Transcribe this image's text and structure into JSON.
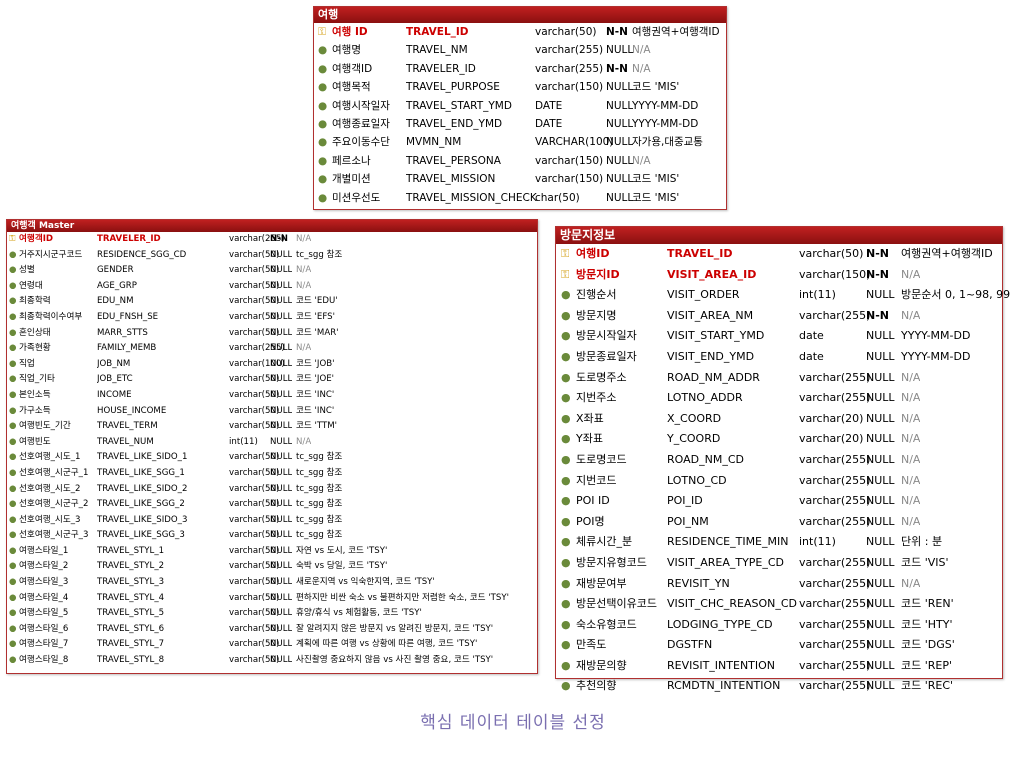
{
  "caption": "핵심 데이터 테이블 선정",
  "tables": [
    {
      "id": "travel",
      "title": "여행",
      "columns": [
        {
          "kor": "여행 ID",
          "name": "TRAVEL_ID",
          "type": "varchar(50)",
          "null": "N-N",
          "comment": "여행권역+여행객ID",
          "pk": true,
          "key": true,
          "na": false
        },
        {
          "kor": "여행명",
          "name": "TRAVEL_NM",
          "type": "varchar(255)",
          "null": "NULL",
          "comment": "N/A",
          "pk": false,
          "key": false,
          "na": true
        },
        {
          "kor": "여행객ID",
          "name": "TRAVELER_ID",
          "type": "varchar(255)",
          "null": "N-N",
          "comment": "N/A",
          "pk": false,
          "key": false,
          "na": true
        },
        {
          "kor": "여행목적",
          "name": "TRAVEL_PURPOSE",
          "type": "varchar(150)",
          "null": "NULL",
          "comment": "코드 'MIS'",
          "pk": false,
          "key": false,
          "na": false
        },
        {
          "kor": "여행시작일자",
          "name": "TRAVEL_START_YMD",
          "type": "DATE",
          "null": "NULL",
          "comment": "YYYY-MM-DD",
          "pk": false,
          "key": false,
          "na": false
        },
        {
          "kor": "여행종료일자",
          "name": "TRAVEL_END_YMD",
          "type": "DATE",
          "null": "NULL",
          "comment": "YYYY-MM-DD",
          "pk": false,
          "key": false,
          "na": false
        },
        {
          "kor": "주요이동수단",
          "name": "MVMN_NM",
          "type": "VARCHAR(100)",
          "null": "NULL",
          "comment": "자가용,대중교통",
          "pk": false,
          "key": false,
          "na": false
        },
        {
          "kor": "페르소나",
          "name": "TRAVEL_PERSONA",
          "type": "varchar(150)",
          "null": "NULL",
          "comment": "N/A",
          "pk": false,
          "key": false,
          "na": true
        },
        {
          "kor": "개별미션",
          "name": "TRAVEL_MISSION",
          "type": "varchar(150)",
          "null": "NULL",
          "comment": "코드 'MIS'",
          "pk": false,
          "key": false,
          "na": false
        },
        {
          "kor": "미션우선도",
          "name": "TRAVEL_MISSION_CHECK",
          "type": "char(50)",
          "null": "NULL",
          "comment": "코드 'MIS'",
          "pk": false,
          "key": false,
          "na": false
        }
      ]
    },
    {
      "id": "traveler",
      "title": "여행객 Master",
      "columns": [
        {
          "kor": "여행객ID",
          "name": "TRAVELER_ID",
          "type": "varchar(255)",
          "null": "N-N",
          "comment": "N/A",
          "pk": true,
          "key": true,
          "na": true
        },
        {
          "kor": "거주지시군구코드",
          "name": "RESIDENCE_SGG_CD",
          "type": "varchar(50)",
          "null": "NULL",
          "comment": "tc_sgg 참조",
          "pk": false,
          "key": false,
          "na": false
        },
        {
          "kor": "성별",
          "name": "GENDER",
          "type": "varchar(50)",
          "null": "NULL",
          "comment": "N/A",
          "pk": false,
          "key": false,
          "na": true
        },
        {
          "kor": "연령대",
          "name": "AGE_GRP",
          "type": "varchar(50)",
          "null": "NULL",
          "comment": "N/A",
          "pk": false,
          "key": false,
          "na": true
        },
        {
          "kor": "최종학력",
          "name": "EDU_NM",
          "type": "varchar(50)",
          "null": "NULL",
          "comment": "코드 'EDU'",
          "pk": false,
          "key": false,
          "na": false
        },
        {
          "kor": "최종학력이수여부",
          "name": "EDU_FNSH_SE",
          "type": "varchar(50)",
          "null": "NULL",
          "comment": "코드 'EFS'",
          "pk": false,
          "key": false,
          "na": false
        },
        {
          "kor": "혼인상태",
          "name": "MARR_STTS",
          "type": "varchar(50)",
          "null": "NULL",
          "comment": "코드 'MAR'",
          "pk": false,
          "key": false,
          "na": false
        },
        {
          "kor": "가족현황",
          "name": "FAMILY_MEMB",
          "type": "varchar(255)",
          "null": "NULL",
          "comment": "N/A",
          "pk": false,
          "key": false,
          "na": true
        },
        {
          "kor": "직업",
          "name": "JOB_NM",
          "type": "varchar(100)",
          "null": "NULL",
          "comment": "코드 'JOB'",
          "pk": false,
          "key": false,
          "na": false
        },
        {
          "kor": "직업_기타",
          "name": "JOB_ETC",
          "type": "varchar(50)",
          "null": "NULL",
          "comment": "코드 'JOE'",
          "pk": false,
          "key": false,
          "na": false
        },
        {
          "kor": "본인소득",
          "name": "INCOME",
          "type": "varchar(50)",
          "null": "NULL",
          "comment": "코드 'INC'",
          "pk": false,
          "key": false,
          "na": false
        },
        {
          "kor": "가구소득",
          "name": "HOUSE_INCOME",
          "type": "varchar(50)",
          "null": "NULL",
          "comment": "코드 'INC'",
          "pk": false,
          "key": false,
          "na": false
        },
        {
          "kor": "여행빈도_기간",
          "name": "TRAVEL_TERM",
          "type": "varchar(50)",
          "null": "NULL",
          "comment": "코드 'TTM'",
          "pk": false,
          "key": false,
          "na": false
        },
        {
          "kor": "여행빈도",
          "name": "TRAVEL_NUM",
          "type": "int(11)",
          "null": "NULL",
          "comment": "N/A",
          "pk": false,
          "key": false,
          "na": true
        },
        {
          "kor": "선호여행_시도_1",
          "name": "TRAVEL_LIKE_SIDO_1",
          "type": "varchar(50)",
          "null": "NULL",
          "comment": "tc_sgg 참조",
          "pk": false,
          "key": false,
          "na": false
        },
        {
          "kor": "선호여행_시군구_1",
          "name": "TRAVEL_LIKE_SGG_1",
          "type": "varchar(50)",
          "null": "NULL",
          "comment": "tc_sgg 참조",
          "pk": false,
          "key": false,
          "na": false
        },
        {
          "kor": "선호여행_시도_2",
          "name": "TRAVEL_LIKE_SIDO_2",
          "type": "varchar(50)",
          "null": "NULL",
          "comment": "tc_sgg 참조",
          "pk": false,
          "key": false,
          "na": false
        },
        {
          "kor": "선호여행_시군구_2",
          "name": "TRAVEL_LIKE_SGG_2",
          "type": "varchar(50)",
          "null": "NULL",
          "comment": "tc_sgg 참조",
          "pk": false,
          "key": false,
          "na": false
        },
        {
          "kor": "선호여행_시도_3",
          "name": "TRAVEL_LIKE_SIDO_3",
          "type": "varchar(50)",
          "null": "NULL",
          "comment": "tc_sgg 참조",
          "pk": false,
          "key": false,
          "na": false
        },
        {
          "kor": "선호여행_시군구_3",
          "name": "TRAVEL_LIKE_SGG_3",
          "type": "varchar(50)",
          "null": "NULL",
          "comment": "tc_sgg 참조",
          "pk": false,
          "key": false,
          "na": false
        },
        {
          "kor": "여행스타일_1",
          "name": "TRAVEL_STYL_1",
          "type": "varchar(50)",
          "null": "NULL",
          "comment": "자연 vs 도시, 코드 'TSY'",
          "pk": false,
          "key": false,
          "na": false
        },
        {
          "kor": "여행스타일_2",
          "name": "TRAVEL_STYL_2",
          "type": "varchar(50)",
          "null": "NULL",
          "comment": "숙박 vs 당일, 코드 'TSY'",
          "pk": false,
          "key": false,
          "na": false
        },
        {
          "kor": "여행스타일_3",
          "name": "TRAVEL_STYL_3",
          "type": "varchar(50)",
          "null": "NULL",
          "comment": "새로운지역 vs 익숙한지역, 코드 'TSY'",
          "pk": false,
          "key": false,
          "na": false
        },
        {
          "kor": "여행스타일_4",
          "name": "TRAVEL_STYL_4",
          "type": "varchar(50)",
          "null": "NULL",
          "comment": "편하지만 비싼 숙소 vs 불편하지만 저렴한 숙소, 코드 'TSY'",
          "pk": false,
          "key": false,
          "na": false
        },
        {
          "kor": "여행스타일_5",
          "name": "TRAVEL_STYL_5",
          "type": "varchar(50)",
          "null": "NULL",
          "comment": "휴양/휴식 vs 체험활동, 코드 'TSY'",
          "pk": false,
          "key": false,
          "na": false
        },
        {
          "kor": "여행스타일_6",
          "name": "TRAVEL_STYL_6",
          "type": "varchar(50)",
          "null": "NULL",
          "comment": "잘 알려지지 않은 방문지 vs 알려진 방문지, 코드 'TSY'",
          "pk": false,
          "key": false,
          "na": false
        },
        {
          "kor": "여행스타일_7",
          "name": "TRAVEL_STYL_7",
          "type": "varchar(50)",
          "null": "NULL",
          "comment": "계획에 따른 여행 vs 상황에 따른 여행, 코드 'TSY'",
          "pk": false,
          "key": false,
          "na": false
        },
        {
          "kor": "여행스타일_8",
          "name": "TRAVEL_STYL_8",
          "type": "varchar(50)",
          "null": "NULL",
          "comment": "사진촬영 중요하지 않음 vs 사진 촬영 중요, 코드 'TSY'",
          "pk": false,
          "key": false,
          "na": false
        }
      ]
    },
    {
      "id": "visit",
      "title": "방문지정보",
      "columns": [
        {
          "kor": "여행ID",
          "name": "TRAVEL_ID",
          "type": "varchar(50)",
          "null": "N-N",
          "comment": "여행권역+여행객ID",
          "pk": true,
          "key": true,
          "na": false
        },
        {
          "kor": "방문지ID",
          "name": "VISIT_AREA_ID",
          "type": "varchar(150)",
          "null": "N-N",
          "comment": "N/A",
          "pk": true,
          "key": true,
          "na": true
        },
        {
          "kor": "진행순서",
          "name": "VISIT_ORDER",
          "type": "int(11)",
          "null": "NULL",
          "comment": "방문순서 0, 1~98, 99",
          "pk": false,
          "key": false,
          "na": false
        },
        {
          "kor": "방문지명",
          "name": "VISIT_AREA_NM",
          "type": "varchar(255)",
          "null": "N-N",
          "comment": "N/A",
          "pk": false,
          "key": false,
          "na": true
        },
        {
          "kor": "방문시작일자",
          "name": "VISIT_START_YMD",
          "type": "date",
          "null": "NULL",
          "comment": "YYYY-MM-DD",
          "pk": false,
          "key": false,
          "na": false
        },
        {
          "kor": "방문종료일자",
          "name": "VISIT_END_YMD",
          "type": "date",
          "null": "NULL",
          "comment": "YYYY-MM-DD",
          "pk": false,
          "key": false,
          "na": false
        },
        {
          "kor": "도로명주소",
          "name": "ROAD_NM_ADDR",
          "type": "varchar(255)",
          "null": "NULL",
          "comment": "N/A",
          "pk": false,
          "key": false,
          "na": true
        },
        {
          "kor": "지번주소",
          "name": "LOTNO_ADDR",
          "type": "varchar(255)",
          "null": "NULL",
          "comment": "N/A",
          "pk": false,
          "key": false,
          "na": true
        },
        {
          "kor": "X좌표",
          "name": "X_COORD",
          "type": "varchar(20)",
          "null": "NULL",
          "comment": "N/A",
          "pk": false,
          "key": false,
          "na": true
        },
        {
          "kor": "Y좌표",
          "name": "Y_COORD",
          "type": "varchar(20)",
          "null": "NULL",
          "comment": "N/A",
          "pk": false,
          "key": false,
          "na": true
        },
        {
          "kor": "도로명코드",
          "name": "ROAD_NM_CD",
          "type": "varchar(255)",
          "null": "NULL",
          "comment": "N/A",
          "pk": false,
          "key": false,
          "na": true
        },
        {
          "kor": "지번코드",
          "name": "LOTNO_CD",
          "type": "varchar(255)",
          "null": "NULL",
          "comment": "N/A",
          "pk": false,
          "key": false,
          "na": true
        },
        {
          "kor": "POI ID",
          "name": "POI_ID",
          "type": "varchar(255)",
          "null": "NULL",
          "comment": "N/A",
          "pk": false,
          "key": false,
          "na": true
        },
        {
          "kor": "POI명",
          "name": "POI_NM",
          "type": "varchar(255)",
          "null": "NULL",
          "comment": "N/A",
          "pk": false,
          "key": false,
          "na": true
        },
        {
          "kor": "체류시간_분",
          "name": "RESIDENCE_TIME_MIN",
          "type": "int(11)",
          "null": "NULL",
          "comment": "단위 : 분",
          "pk": false,
          "key": false,
          "na": false
        },
        {
          "kor": "방문지유형코드",
          "name": "VISIT_AREA_TYPE_CD",
          "type": "varchar(255)",
          "null": "NULL",
          "comment": "코드 'VIS'",
          "pk": false,
          "key": false,
          "na": false
        },
        {
          "kor": "재방문여부",
          "name": "REVISIT_YN",
          "type": "varchar(255)",
          "null": "NULL",
          "comment": "N/A",
          "pk": false,
          "key": false,
          "na": true
        },
        {
          "kor": "방문선택이유코드",
          "name": "VISIT_CHC_REASON_CD",
          "type": "varchar(255)",
          "null": "NULL",
          "comment": "코드 'REN'",
          "pk": false,
          "key": false,
          "na": false
        },
        {
          "kor": "숙소유형코드",
          "name": "LODGING_TYPE_CD",
          "type": "varchar(255)",
          "null": "NULL",
          "comment": "코드 'HTY'",
          "pk": false,
          "key": false,
          "na": false
        },
        {
          "kor": "만족도",
          "name": "DGSTFN",
          "type": "varchar(255)",
          "null": "NULL",
          "comment": "코드 'DGS'",
          "pk": false,
          "key": false,
          "na": false
        },
        {
          "kor": "재방문의향",
          "name": "REVISIT_INTENTION",
          "type": "varchar(255)",
          "null": "NULL",
          "comment": "코드 'REP'",
          "pk": false,
          "key": false,
          "na": false
        },
        {
          "kor": "추천의향",
          "name": "RCMDTN_INTENTION",
          "type": "varchar(255)",
          "null": "NULL",
          "comment": "코드 'REC'",
          "pk": false,
          "key": false,
          "na": false
        }
      ]
    }
  ]
}
